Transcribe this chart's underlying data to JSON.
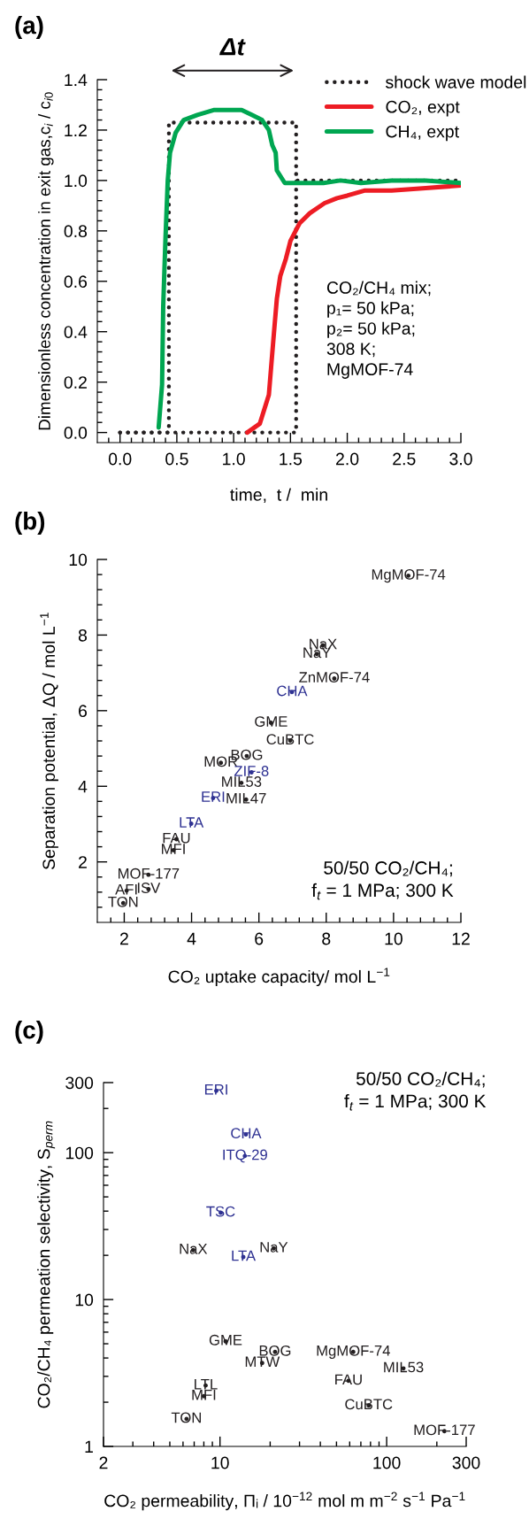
{
  "chart_data": [
    {
      "type": "line",
      "title": "(a)",
      "xlabel": "time,  t /  min",
      "ylabel": "Dimensionless concentration in exit gas,c$_{i}$ / c$_{i0}$",
      "xlim": [
        -0.2,
        3.0
      ],
      "ylim": [
        -0.04,
        1.4
      ],
      "xticks": [
        {
          "value": 0,
          "label": "0.0"
        },
        {
          "value": 0.5,
          "label": "0.5"
        },
        {
          "value": 1,
          "label": "1.0"
        },
        {
          "value": 1.5,
          "label": "1.5"
        },
        {
          "value": 2,
          "label": "2.0"
        },
        {
          "value": 2.5,
          "label": "2.5"
        },
        {
          "value": 3,
          "label": "3.0"
        },
        {
          "value": -0.1,
          "label": null
        },
        {
          "value": 0.1,
          "label": null
        },
        {
          "value": 0.2,
          "label": null
        },
        {
          "value": 0.3,
          "label": null
        },
        {
          "value": 0.4,
          "label": null
        },
        {
          "value": 0.6,
          "label": null
        },
        {
          "value": 0.7,
          "label": null
        },
        {
          "value": 0.8,
          "label": null
        },
        {
          "value": 0.9,
          "label": null
        },
        {
          "value": 1.1,
          "label": null
        },
        {
          "value": 1.2,
          "label": null
        },
        {
          "value": 1.3,
          "label": null
        },
        {
          "value": 1.4,
          "label": null
        },
        {
          "value": 1.6,
          "label": null
        },
        {
          "value": 1.7,
          "label": null
        },
        {
          "value": 1.8,
          "label": null
        },
        {
          "value": 1.9,
          "label": null
        },
        {
          "value": 2.1,
          "label": null
        },
        {
          "value": 2.2,
          "label": null
        },
        {
          "value": 2.3,
          "label": null
        },
        {
          "value": 2.4,
          "label": null
        },
        {
          "value": 2.6,
          "label": null
        },
        {
          "value": 2.7,
          "label": null
        },
        {
          "value": 2.8,
          "label": null
        },
        {
          "value": 2.9,
          "label": null
        }
      ],
      "yticks": [
        {
          "value": 0,
          "label": "0.0"
        },
        {
          "value": 0.2,
          "label": "0.2"
        },
        {
          "value": 0.4,
          "label": "0.4"
        },
        {
          "value": 0.6,
          "label": "0.6"
        },
        {
          "value": 0.8,
          "label": "0.8"
        },
        {
          "value": 1.0,
          "label": "1.0"
        },
        {
          "value": 1.2,
          "label": "1.2"
        },
        {
          "value": 1.4,
          "label": "1.4"
        },
        {
          "value": 0.04,
          "label": null
        },
        {
          "value": 0.08,
          "label": null
        },
        {
          "value": 0.12,
          "label": null
        },
        {
          "value": 0.16,
          "label": null
        },
        {
          "value": 0.24,
          "label": null
        },
        {
          "value": 0.28,
          "label": null
        },
        {
          "value": 0.32,
          "label": null
        },
        {
          "value": 0.36,
          "label": null
        },
        {
          "value": 0.44,
          "label": null
        },
        {
          "value": 0.48,
          "label": null
        },
        {
          "value": 0.52,
          "label": null
        },
        {
          "value": 0.56,
          "label": null
        },
        {
          "value": 0.64,
          "label": null
        },
        {
          "value": 0.68,
          "label": null
        },
        {
          "value": 0.72,
          "label": null
        },
        {
          "value": 0.76,
          "label": null
        },
        {
          "value": 0.84,
          "label": null
        },
        {
          "value": 0.88,
          "label": null
        },
        {
          "value": 0.92,
          "label": null
        },
        {
          "value": 0.96,
          "label": null
        },
        {
          "value": 1.04,
          "label": null
        },
        {
          "value": 1.08,
          "label": null
        },
        {
          "value": 1.12,
          "label": null
        },
        {
          "value": 1.16,
          "label": null
        },
        {
          "value": 1.24,
          "label": null
        },
        {
          "value": 1.28,
          "label": null
        },
        {
          "value": 1.32,
          "label": null
        },
        {
          "value": 1.36,
          "label": null
        }
      ],
      "legend": "top right",
      "marker": "none",
      "annotations": [
        "Δt",
        "CO₂/CH₄ mix;\np₁= 50 kPa;\np₂= 50 kPa;\n308 K;\nMgMOF-74"
      ],
      "series": [
        {
          "name": "shock wave model",
          "color": "#231f20",
          "line_style": "dotted",
          "x": [
            0,
            0.43,
            0.43,
            1.55,
            1.55,
            3.0
          ],
          "values": [
            0,
            0,
            1.23,
            1.23,
            1.0,
            1.0
          ]
        },
        {
          "color": "#231f20",
          "line_style": "dotted",
          "x": [
            0,
            1.55,
            1.55
          ],
          "values": [
            0,
            0,
            1.0
          ]
        },
        {
          "name": "CO₂, expt",
          "color": "#ed1c24",
          "line_style": "solid",
          "x": [
            1.12,
            1.23,
            1.31,
            1.35,
            1.38,
            1.41,
            1.46,
            1.5,
            1.58,
            1.67,
            1.8,
            1.91,
            2.0,
            2.15,
            2.39,
            2.69,
            3.0
          ],
          "values": [
            0.0,
            0.035,
            0.15,
            0.37,
            0.53,
            0.62,
            0.69,
            0.76,
            0.83,
            0.87,
            0.91,
            0.93,
            0.94,
            0.96,
            0.96,
            0.97,
            0.98
          ]
        },
        {
          "name": "CH₄, expt",
          "color": "#00a651",
          "line_style": "solid",
          "x": [
            0.34,
            0.37,
            0.38,
            0.4,
            0.42,
            0.44,
            0.49,
            0.56,
            0.68,
            0.83,
            1.07,
            1.16,
            1.25,
            1.31,
            1.34,
            1.37,
            1.38,
            1.45,
            1.55,
            1.79,
            1.94,
            2.12,
            2.39,
            2.69,
            3.0
          ],
          "values": [
            0.02,
            0.19,
            0.5,
            0.77,
            1.0,
            1.11,
            1.19,
            1.24,
            1.26,
            1.28,
            1.28,
            1.26,
            1.24,
            1.2,
            1.14,
            1.11,
            1.04,
            0.99,
            0.99,
            0.99,
            1.0,
            0.99,
            1.0,
            1.0,
            0.99
          ]
        }
      ]
    },
    {
      "type": "scatter",
      "title": "(b)",
      "xlabel": "CO₂ uptake capacity/ mol L$^{−1}$",
      "ylabel": "Separation potential, ΔQ / mol L$^{−1}$",
      "xlim": [
        1.2,
        12
      ],
      "ylim": [
        0.4,
        10
      ],
      "xticks": [
        2,
        4,
        6,
        8,
        10,
        12,
        {
          "value": 1.6,
          "label": null
        },
        {
          "value": 2.4,
          "label": null
        },
        {
          "value": 2.8,
          "label": null
        },
        {
          "value": 3.2,
          "label": null
        },
        {
          "value": 3.6,
          "label": null
        },
        {
          "value": 4.4,
          "label": null
        },
        {
          "value": 4.8,
          "label": null
        },
        {
          "value": 5.2,
          "label": null
        },
        {
          "value": 5.6,
          "label": null
        },
        {
          "value": 6.4,
          "label": null
        },
        {
          "value": 6.8,
          "label": null
        },
        {
          "value": 7.2,
          "label": null
        },
        {
          "value": 7.6,
          "label": null
        },
        {
          "value": 8.4,
          "label": null
        },
        {
          "value": 8.8,
          "label": null
        },
        {
          "value": 9.2,
          "label": null
        },
        {
          "value": 9.6,
          "label": null
        },
        {
          "value": 10.4,
          "label": null
        },
        {
          "value": 10.8,
          "label": null
        },
        {
          "value": 11.2,
          "label": null
        },
        {
          "value": 11.6,
          "label": null
        }
      ],
      "yticks": [
        2,
        4,
        6,
        8,
        10,
        {
          "value": 0.8,
          "label": null
        },
        {
          "value": 1.2,
          "label": null
        },
        {
          "value": 1.6,
          "label": null
        },
        {
          "value": 2.4,
          "label": null
        },
        {
          "value": 2.8,
          "label": null
        },
        {
          "value": 3.2,
          "label": null
        },
        {
          "value": 3.6,
          "label": null
        },
        {
          "value": 4.4,
          "label": null
        },
        {
          "value": 4.8,
          "label": null
        },
        {
          "value": 5.2,
          "label": null
        },
        {
          "value": 5.6,
          "label": null
        },
        {
          "value": 6.4,
          "label": null
        },
        {
          "value": 6.8,
          "label": null
        },
        {
          "value": 7.2,
          "label": null
        },
        {
          "value": 7.6,
          "label": null
        },
        {
          "value": 8.4,
          "label": null
        },
        {
          "value": 8.8,
          "label": null
        },
        {
          "value": 9.2,
          "label": null
        },
        {
          "value": 9.6,
          "label": null
        }
      ],
      "marker": "circle",
      "annotations": [
        "50/50 CO₂/CH₄;\nf$_{t}$ = 1 MPa; 300 K"
      ],
      "series": [
        {
          "color": "#231f20",
          "x": [
            10.44,
            7.9,
            7.72,
            8.24,
            6.36,
            6.93,
            5.64,
            4.87,
            5.48,
            5.62,
            3.55,
            3.46,
            2.72,
            2.07,
            2.72,
            1.97
          ],
          "values": [
            9.57,
            7.73,
            7.5,
            6.85,
            5.68,
            5.21,
            4.8,
            4.62,
            4.09,
            3.65,
            2.6,
            2.31,
            1.66,
            1.24,
            1.28,
            0.91
          ],
          "value_labels": [
            "MgMOF-74",
            "NaX",
            "NaY",
            "ZnMOF-74",
            "GME",
            "CuBTC",
            "BOG",
            "MOR",
            "MIL53",
            "MIL47",
            "FAU",
            "MFI",
            "MOF-177",
            "AFI",
            "ISV",
            "TON"
          ]
        },
        {
          "color": "#2e3192",
          "x": [
            6.98,
            5.78,
            4.64,
            3.99
          ],
          "values": [
            6.49,
            4.37,
            3.69,
            3.01
          ],
          "value_labels": [
            "CHA",
            "ZIF-8",
            "ERI",
            "LTA"
          ]
        }
      ]
    },
    {
      "type": "scatter",
      "title": "(c)",
      "xlabel": "CO₂ permeability, Πᵢ / 10$^{−12}$ mol m m$^{−2}$ s$^{−1}$ Pa$^{−1}$",
      "ylabel": "CO₂/CH₄ permeation selectivity, S$_{perm}$",
      "log": "xy",
      "xlim": [
        2,
        300
      ],
      "ylim": [
        1,
        300
      ],
      "xticks": [
        2,
        10,
        100,
        300,
        {
          "value": 3,
          "label": null
        },
        {
          "value": 4,
          "label": null
        },
        {
          "value": 5,
          "label": null
        },
        {
          "value": 6,
          "label": null
        },
        {
          "value": 7,
          "label": null
        },
        {
          "value": 8,
          "label": null
        },
        {
          "value": 9,
          "label": null
        },
        {
          "value": 20,
          "label": null
        },
        {
          "value": 30,
          "label": null
        },
        {
          "value": 40,
          "label": null
        },
        {
          "value": 50,
          "label": null
        },
        {
          "value": 60,
          "label": null
        },
        {
          "value": 70,
          "label": null
        },
        {
          "value": 80,
          "label": null
        },
        {
          "value": 90,
          "label": null
        },
        {
          "value": 200,
          "label": null
        }
      ],
      "yticks": [
        1,
        10,
        100,
        300,
        {
          "value": 2,
          "label": null
        },
        {
          "value": 3,
          "label": null
        },
        {
          "value": 4,
          "label": null
        },
        {
          "value": 5,
          "label": null
        },
        {
          "value": 6,
          "label": null
        },
        {
          "value": 7,
          "label": null
        },
        {
          "value": 8,
          "label": null
        },
        {
          "value": 9,
          "label": null
        },
        {
          "value": 20,
          "label": null
        },
        {
          "value": 30,
          "label": null
        },
        {
          "value": 40,
          "label": null
        },
        {
          "value": 50,
          "label": null
        },
        {
          "value": 60,
          "label": null
        },
        {
          "value": 70,
          "label": null
        },
        {
          "value": 80,
          "label": null
        },
        {
          "value": 90,
          "label": null
        },
        {
          "value": 200,
          "label": null
        }
      ],
      "marker": "circle",
      "annotations": [
        "50/50 CO₂/CH₄;\nf$_{t}$ = 1 MPa; 300 K"
      ],
      "series": [
        {
          "color": "#231f20",
          "x": [
            6.9,
            21,
            10.8,
            21.4,
            17.9,
            63,
            126,
            59,
            78,
            222,
            8.2,
            8.0,
            6.3
          ],
          "values": [
            21.7,
            22.3,
            5.2,
            4.4,
            3.7,
            4.4,
            3.4,
            2.8,
            1.9,
            1.27,
            2.6,
            2.2,
            1.54
          ],
          "value_labels": [
            "NaX",
            "NaY",
            "GME",
            "BOG",
            "MTW",
            "MgMOF-74",
            "MIL53",
            "FAU",
            "CuBTC",
            "MOF-177",
            "LTL",
            "MFI",
            "TON"
          ]
        },
        {
          "color": "#2e3192",
          "x": [
            9.5,
            14.3,
            14.1,
            10.1,
            13.8
          ],
          "values": [
            264,
            133,
            95,
            39,
            19.5
          ],
          "value_labels": [
            "ERI",
            "CHA",
            "ITQ-29",
            "TSC",
            "LTA"
          ]
        }
      ]
    }
  ]
}
